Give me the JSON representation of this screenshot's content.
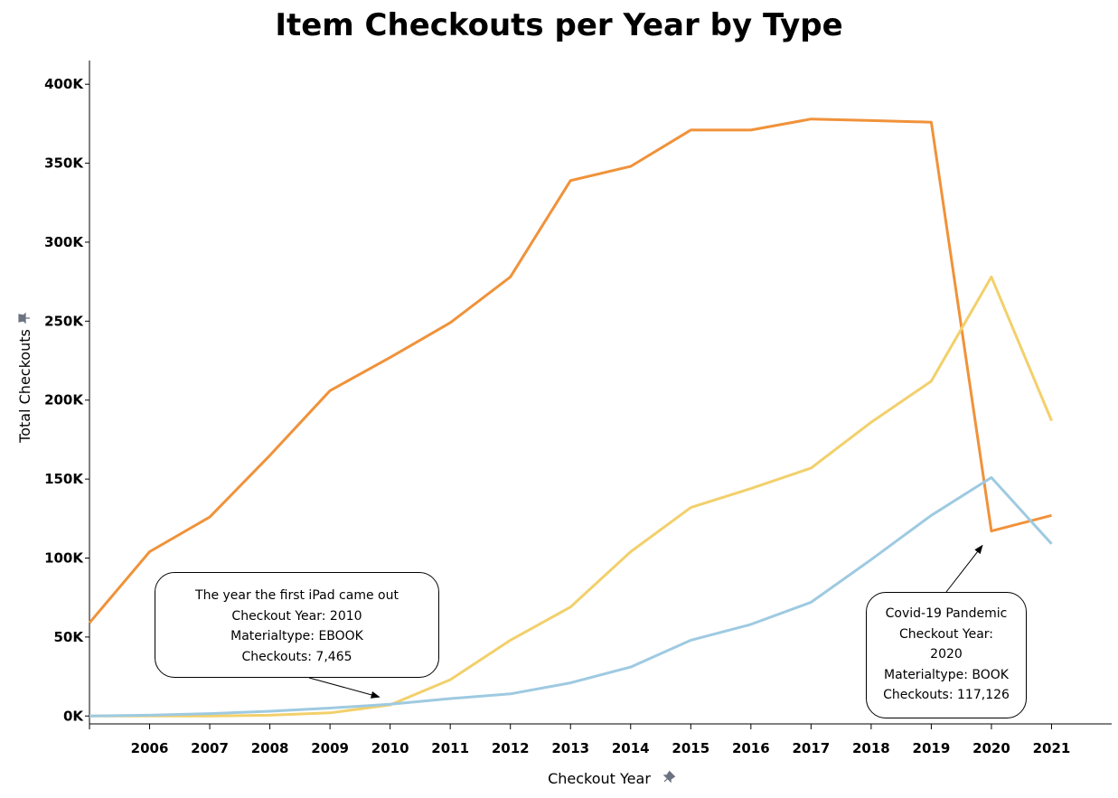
{
  "chart_data": {
    "type": "line",
    "title": "Item Checkouts per Year by Type",
    "xlabel": "Checkout Year",
    "ylabel": "Total Checkouts",
    "x": [
      2005,
      2006,
      2007,
      2008,
      2009,
      2010,
      2011,
      2012,
      2013,
      2014,
      2015,
      2016,
      2017,
      2018,
      2019,
      2020,
      2021
    ],
    "x_tick_labels": [
      "2006",
      "2007",
      "2008",
      "2009",
      "2010",
      "2011",
      "2012",
      "2013",
      "2014",
      "2015",
      "2016",
      "2017",
      "2018",
      "2019",
      "2020",
      "2021"
    ],
    "y_tick_labels": [
      "0K",
      "50K",
      "100K",
      "150K",
      "200K",
      "250K",
      "300K",
      "350K",
      "400K"
    ],
    "y_ticks": [
      0,
      50000,
      100000,
      150000,
      200000,
      250000,
      300000,
      350000,
      400000
    ],
    "ylim": [
      -5000,
      415000
    ],
    "xlim": [
      2005,
      2022
    ],
    "grid": false,
    "legend": "none",
    "series": [
      {
        "color": "#f0923a",
        "values": [
          59000,
          104000,
          126000,
          165000,
          206000,
          227000,
          249000,
          278000,
          339000,
          348000,
          371000,
          371000,
          378000,
          377000,
          376000,
          117126,
          127000
        ]
      },
      {
        "color": "#f2d06b",
        "values": [
          0,
          0,
          0,
          500,
          2000,
          7000,
          23000,
          48000,
          69000,
          104000,
          132000,
          144000,
          157000,
          186000,
          212000,
          278000,
          187000
        ]
      },
      {
        "color": "#9ecae1",
        "values": [
          0,
          500,
          1500,
          3000,
          5000,
          7465,
          11000,
          14000,
          21000,
          31000,
          48000,
          58000,
          72000,
          99000,
          127000,
          151000,
          109000
        ]
      }
    ],
    "annotations": [
      {
        "lines": [
          "The year the first iPad came out",
          "Checkout Year: 2010",
          "Materialtype: EBOOK",
          "Checkouts: 7,465"
        ],
        "target_x": 2010,
        "target_y": 7465
      },
      {
        "lines": [
          "Covid-19 Pandemic",
          "Checkout Year:",
          "2020",
          "Materialtype: BOOK",
          "Checkouts: 117,126"
        ],
        "target_x": 2020,
        "target_y": 117126
      }
    ]
  },
  "colors": {
    "axis": "#000000",
    "pin_icon": "#6b7280"
  }
}
